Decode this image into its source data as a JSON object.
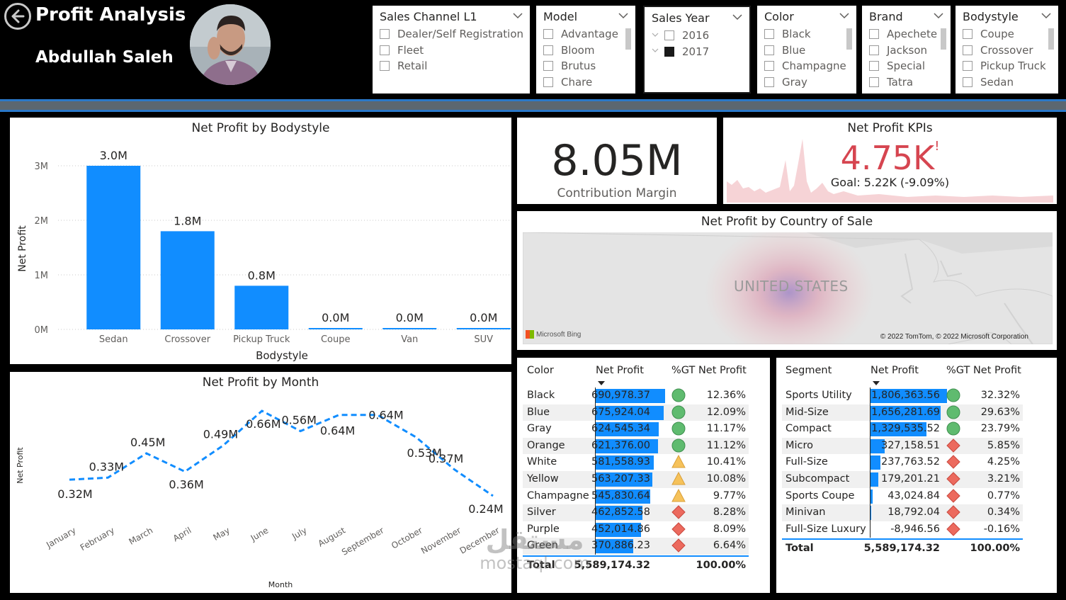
{
  "header": {
    "title": "Profit Analysis",
    "author": "Abdullah Saleh",
    "back_icon": "back-arrow-icon"
  },
  "slicers": [
    {
      "title": "Sales Channel L1",
      "options": [
        {
          "label": "Dealer/Self Registration",
          "checked": false
        },
        {
          "label": "Fleet",
          "checked": false
        },
        {
          "label": "Retail",
          "checked": false
        }
      ]
    },
    {
      "title": "Model",
      "options": [
        {
          "label": "Advantage",
          "checked": false
        },
        {
          "label": "Bloom",
          "checked": false
        },
        {
          "label": "Brutus",
          "checked": false
        },
        {
          "label": "Chare",
          "checked": false
        }
      ]
    },
    {
      "title": "Sales Year",
      "options": [
        {
          "label": "2016",
          "checked": false
        },
        {
          "label": "2017",
          "checked": true
        }
      ]
    },
    {
      "title": "Color",
      "options": [
        {
          "label": "Black",
          "checked": false
        },
        {
          "label": "Blue",
          "checked": false
        },
        {
          "label": "Champagne",
          "checked": false
        },
        {
          "label": "Gray",
          "checked": false
        }
      ]
    },
    {
      "title": "Brand",
      "options": [
        {
          "label": "Apechete",
          "checked": false
        },
        {
          "label": "Jackson",
          "checked": false
        },
        {
          "label": "Special",
          "checked": false
        },
        {
          "label": "Tatra",
          "checked": false
        }
      ]
    },
    {
      "title": "Bodystyle",
      "options": [
        {
          "label": "Coupe",
          "checked": false
        },
        {
          "label": "Crossover",
          "checked": false
        },
        {
          "label": "Pickup Truck",
          "checked": false
        },
        {
          "label": "Sedan",
          "checked": false
        }
      ]
    }
  ],
  "bodystyle_chart": {
    "title": "Net Profit by Bodystyle",
    "xlabel": "Bodystyle",
    "ylabel": "Net Profit",
    "yticks": [
      "0M",
      "1M",
      "2M",
      "3M"
    ],
    "bar_color": "#118dff"
  },
  "month_chart": {
    "title": "Net Profit by Month",
    "xlabel": "Month",
    "ylabel": "Net Profit",
    "line_color": "#118dff"
  },
  "card": {
    "value": "8.05M",
    "label": "Contribution Margin"
  },
  "kpi": {
    "title": "Net Profit KPIs",
    "value": "4.75K",
    "indicator": "!",
    "goal": "Goal: 5.22K (-9.09%)",
    "value_color": "#d64550"
  },
  "map": {
    "title": "Net Profit by Country of Sale",
    "country": "UNITED STATES",
    "bing": "Microsoft Bing",
    "copyright": "© 2022 TomTom, © 2022 Microsoft Corporation"
  },
  "color_table": {
    "headers": [
      "Color",
      "Net Profit",
      "%GT Net Profit"
    ],
    "rows": [
      {
        "name": "Black",
        "value": "690,978.37",
        "pct": "12.36%",
        "status": "green"
      },
      {
        "name": "Blue",
        "value": "675,924.04",
        "pct": "12.09%",
        "status": "green"
      },
      {
        "name": "Gray",
        "value": "624,545.34",
        "pct": "11.17%",
        "status": "green"
      },
      {
        "name": "Orange",
        "value": "621,376.00",
        "pct": "11.12%",
        "status": "green"
      },
      {
        "name": "White",
        "value": "581,558.93",
        "pct": "10.41%",
        "status": "yellow"
      },
      {
        "name": "Yellow",
        "value": "563,207.33",
        "pct": "10.08%",
        "status": "yellow"
      },
      {
        "name": "Champagne",
        "value": "545,830.64",
        "pct": "9.77%",
        "status": "yellow"
      },
      {
        "name": "Silver",
        "value": "462,852.58",
        "pct": "8.28%",
        "status": "red"
      },
      {
        "name": "Purple",
        "value": "452,014.86",
        "pct": "8.09%",
        "status": "red"
      },
      {
        "name": "Green",
        "value": "370,886.23",
        "pct": "6.64%",
        "status": "red"
      }
    ],
    "total": {
      "name": "Total",
      "value": "5,589,174.32",
      "pct": "100.00%"
    }
  },
  "segment_table": {
    "headers": [
      "Segment",
      "Net Profit",
      "%GT Net Profit"
    ],
    "rows": [
      {
        "name": "Sports Utility",
        "value": "1,806,363.56",
        "pct": "32.32%",
        "status": "green"
      },
      {
        "name": "Mid-Size",
        "value": "1,656,281.69",
        "pct": "29.63%",
        "status": "green"
      },
      {
        "name": "Compact",
        "value": "1,329,535.52",
        "pct": "23.79%",
        "status": "green"
      },
      {
        "name": "Micro",
        "value": "327,158.51",
        "pct": "5.85%",
        "status": "red"
      },
      {
        "name": "Full-Size",
        "value": "237,763.52",
        "pct": "4.25%",
        "status": "red"
      },
      {
        "name": "Subcompact",
        "value": "179,201.21",
        "pct": "3.21%",
        "status": "red"
      },
      {
        "name": "Sports Coupe",
        "value": "43,024.84",
        "pct": "0.77%",
        "status": "red"
      },
      {
        "name": "Minivan",
        "value": "18,792.04",
        "pct": "0.34%",
        "status": "red"
      },
      {
        "name": "Full-Size Luxury",
        "value": "-8,946.56",
        "pct": "-0.16%",
        "status": "red"
      }
    ],
    "total": {
      "name": "Total",
      "value": "5,589,174.32",
      "pct": "100.00%"
    }
  },
  "watermark": {
    "line1": "مستقل",
    "line2": "mostaql.com"
  },
  "chart_data": [
    {
      "type": "bar",
      "title": "Net Profit by Bodystyle",
      "xlabel": "Bodystyle",
      "ylabel": "Net Profit",
      "categories": [
        "Sedan",
        "Crossover",
        "Pickup Truck",
        "Coupe",
        "Van",
        "SUV"
      ],
      "values": [
        3.0,
        1.8,
        0.8,
        0.0,
        0.0,
        0.0
      ],
      "labels": [
        "3.0M",
        "1.8M",
        "0.8M",
        "0.0M",
        "0.0M",
        "0.0M"
      ],
      "unit": "M",
      "ylim": [
        0,
        3.0
      ],
      "grid": true
    },
    {
      "type": "line",
      "title": "Net Profit by Month",
      "xlabel": "Month",
      "ylabel": "Net Profit",
      "categories": [
        "January",
        "February",
        "March",
        "April",
        "May",
        "June",
        "July",
        "August",
        "September",
        "October",
        "November",
        "December"
      ],
      "values": [
        0.32,
        0.33,
        0.45,
        0.36,
        0.49,
        0.66,
        0.56,
        0.64,
        0.64,
        0.53,
        0.37,
        0.24
      ],
      "labels": [
        "0.32M",
        "0.33M",
        "0.45M",
        "0.36M",
        "0.49M",
        "0.66M",
        "0.56M",
        "0.64M",
        "0.64M",
        "0.53M",
        "0.37M",
        "0.24M"
      ],
      "unit": "M",
      "line_style": "dashed"
    }
  ]
}
